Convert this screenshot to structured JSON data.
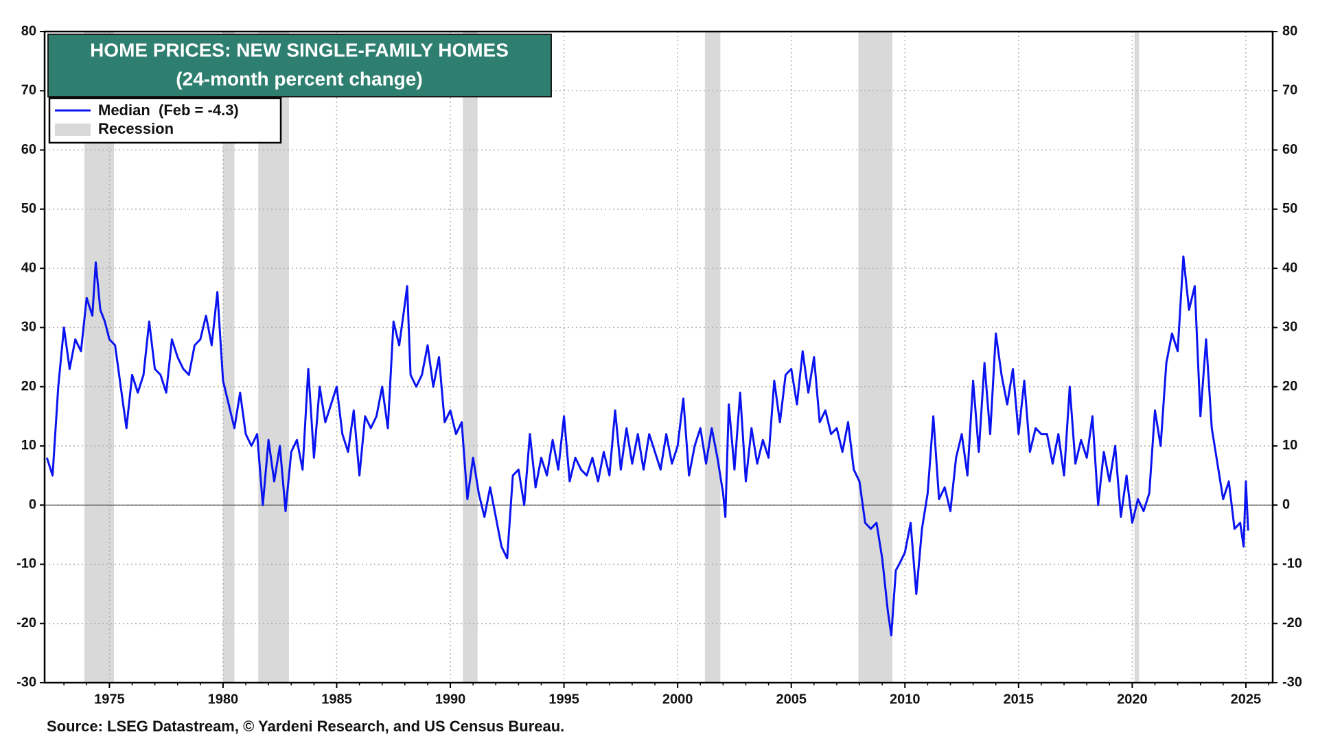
{
  "chart_data": {
    "type": "line",
    "title": "HOME PRICES: NEW SINGLE-FAMILY HOMES",
    "subtitle": "(24-month percent change)",
    "source": "Source: LSEG Datastream, © Yardeni Research, and US Census Bureau.",
    "recession_label": "Recession",
    "recession_color": "#d9d9d9",
    "recessions": [
      [
        1973.9,
        1975.2
      ],
      [
        1980.0,
        1980.5
      ],
      [
        1981.55,
        1982.9
      ],
      [
        1990.55,
        1991.2
      ],
      [
        2001.2,
        2001.88
      ],
      [
        2007.95,
        2009.45
      ],
      [
        2020.1,
        2020.3
      ]
    ],
    "x": [
      1972.25,
      1972.5,
      1972.75,
      1973.0,
      1973.25,
      1973.5,
      1973.75,
      1974.0,
      1974.25,
      1974.4,
      1974.6,
      1974.8,
      1975.0,
      1975.25,
      1975.5,
      1975.75,
      1976.0,
      1976.25,
      1976.5,
      1976.75,
      1977.0,
      1977.25,
      1977.5,
      1977.75,
      1978.0,
      1978.25,
      1978.5,
      1978.75,
      1979.0,
      1979.25,
      1979.5,
      1979.75,
      1980.0,
      1980.25,
      1980.5,
      1980.75,
      1981.0,
      1981.25,
      1981.5,
      1981.75,
      1982.0,
      1982.25,
      1982.5,
      1982.75,
      1983.0,
      1983.25,
      1983.5,
      1983.75,
      1984.0,
      1984.25,
      1984.5,
      1984.75,
      1985.0,
      1985.25,
      1985.5,
      1985.75,
      1986.0,
      1986.25,
      1986.5,
      1986.75,
      1987.0,
      1987.25,
      1987.5,
      1987.75,
      1988.0,
      1988.1,
      1988.25,
      1988.5,
      1988.75,
      1989.0,
      1989.25,
      1989.5,
      1989.75,
      1990.0,
      1990.25,
      1990.5,
      1990.75,
      1991.0,
      1991.25,
      1991.5,
      1991.75,
      1992.0,
      1992.25,
      1992.5,
      1992.75,
      1993.0,
      1993.25,
      1993.5,
      1993.75,
      1994.0,
      1994.25,
      1994.5,
      1994.75,
      1995.0,
      1995.25,
      1995.5,
      1995.75,
      1996.0,
      1996.25,
      1996.5,
      1996.75,
      1997.0,
      1997.25,
      1997.5,
      1997.75,
      1998.0,
      1998.25,
      1998.5,
      1998.75,
      1999.0,
      1999.25,
      1999.5,
      1999.75,
      2000.0,
      2000.25,
      2000.5,
      2000.75,
      2001.0,
      2001.25,
      2001.5,
      2001.75,
      2002.0,
      2002.1,
      2002.25,
      2002.5,
      2002.75,
      2003.0,
      2003.25,
      2003.5,
      2003.75,
      2004.0,
      2004.25,
      2004.5,
      2004.75,
      2005.0,
      2005.25,
      2005.5,
      2005.75,
      2006.0,
      2006.25,
      2006.5,
      2006.75,
      2007.0,
      2007.25,
      2007.5,
      2007.75,
      2008.0,
      2008.25,
      2008.5,
      2008.75,
      2009.0,
      2009.25,
      2009.4,
      2009.6,
      2009.75,
      2010.0,
      2010.25,
      2010.5,
      2010.75,
      2011.0,
      2011.25,
      2011.5,
      2011.75,
      2012.0,
      2012.25,
      2012.5,
      2012.75,
      2013.0,
      2013.25,
      2013.5,
      2013.75,
      2014.0,
      2014.25,
      2014.5,
      2014.75,
      2015.0,
      2015.25,
      2015.5,
      2015.75,
      2016.0,
      2016.25,
      2016.5,
      2016.75,
      2017.0,
      2017.25,
      2017.5,
      2017.75,
      2018.0,
      2018.25,
      2018.5,
      2018.75,
      2019.0,
      2019.25,
      2019.5,
      2019.75,
      2020.0,
      2020.25,
      2020.5,
      2020.75,
      2021.0,
      2021.25,
      2021.5,
      2021.75,
      2022.0,
      2022.25,
      2022.5,
      2022.75,
      2023.0,
      2023.25,
      2023.5,
      2023.75,
      2024.0,
      2024.25,
      2024.5,
      2024.75,
      2024.9,
      2025.0,
      2025.1
    ],
    "series": [
      {
        "name": "Median  (Feb = -4.3)",
        "color": "#0a14f0",
        "values": [
          8,
          5,
          20,
          30,
          23,
          28,
          26,
          35,
          32,
          41,
          33,
          31,
          28,
          27,
          20,
          13,
          22,
          19,
          22,
          31,
          23,
          22,
          19,
          28,
          25,
          23,
          22,
          27,
          28,
          32,
          27,
          36,
          21,
          17,
          13,
          19,
          12,
          10,
          12,
          0,
          11,
          4,
          10,
          -1,
          9,
          11,
          6,
          23,
          8,
          20,
          14,
          17,
          20,
          12,
          9,
          16,
          5,
          15,
          13,
          15,
          20,
          13,
          31,
          27,
          34,
          37,
          22,
          20,
          22,
          27,
          20,
          25,
          14,
          16,
          12,
          14,
          1,
          8,
          2,
          -2,
          3,
          -2,
          -7,
          -9,
          5,
          6,
          0,
          12,
          3,
          8,
          5,
          11,
          6,
          15,
          4,
          8,
          6,
          5,
          8,
          4,
          9,
          5,
          16,
          6,
          13,
          7,
          12,
          6,
          12,
          9,
          6,
          12,
          7,
          10,
          18,
          5,
          10,
          13,
          7,
          13,
          8,
          2,
          -2,
          17,
          6,
          19,
          4,
          13,
          7,
          11,
          8,
          21,
          14,
          22,
          23,
          17,
          26,
          19,
          25,
          14,
          16,
          12,
          13,
          9,
          14,
          6,
          4,
          -3,
          -4,
          -3,
          -9,
          -18,
          -22,
          -11,
          -10,
          -8,
          -3,
          -15,
          -4,
          2,
          15,
          1,
          3,
          -1,
          8,
          12,
          5,
          21,
          9,
          24,
          12,
          29,
          22,
          17,
          23,
          12,
          21,
          9,
          13,
          12,
          12,
          7,
          12,
          5,
          20,
          7,
          11,
          8,
          15,
          0,
          9,
          4,
          10,
          -2,
          5,
          -3,
          1,
          -1,
          2,
          16,
          10,
          24,
          29,
          26,
          42,
          33,
          37,
          15,
          28,
          13,
          7,
          1,
          4,
          -4,
          -3,
          -7,
          4,
          -4.3
        ]
      }
    ],
    "xlim": [
      1972.15,
      2026.18
    ],
    "xticks": [
      1975,
      1980,
      1985,
      1990,
      1995,
      2000,
      2005,
      2010,
      2015,
      2020,
      2025
    ],
    "ylim": [
      -30,
      80
    ],
    "yticks": [
      -30,
      -20,
      -10,
      0,
      10,
      20,
      30,
      40,
      50,
      60,
      70,
      80
    ],
    "y2lim": [
      -30,
      80
    ],
    "y2ticks": [
      -30,
      -20,
      -10,
      0,
      10,
      20,
      30,
      40,
      50,
      60,
      70,
      80
    ],
    "grid": true,
    "title_box_color": "#2f7f70",
    "legend": "upper left"
  }
}
